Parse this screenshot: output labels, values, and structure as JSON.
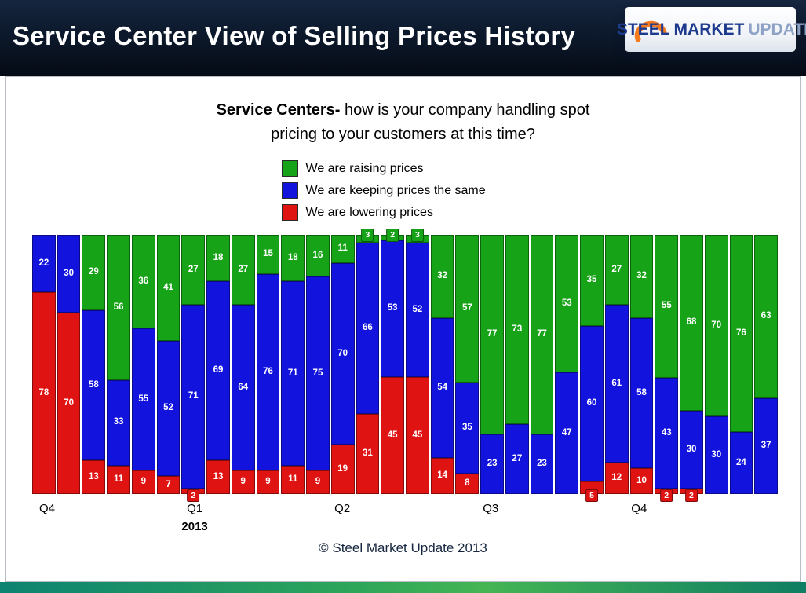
{
  "header": {
    "title": "Service Center View of Selling Prices History"
  },
  "logo": {
    "word1": "STEEL",
    "word2": "MARKET",
    "word3": "UPDATE"
  },
  "chart_title": {
    "bold": "Service Centers-",
    "line1_rest": " how is your company handling spot",
    "line2": "pricing to your customers at this time?"
  },
  "footer": {
    "copyright": "© Steel Market Update 2013"
  },
  "chart_data": {
    "type": "bar",
    "stacked": true,
    "units": "percent",
    "ylim": [
      0,
      100
    ],
    "title": "Service Centers- how is your company handling spot pricing to your customers at this time?",
    "legend_position": "top",
    "series": [
      {
        "name": "We are raising prices",
        "color": "#17A317",
        "callout_max": 3,
        "callout_side": "above",
        "values": [
          0,
          0,
          29,
          56,
          36,
          41,
          27,
          18,
          27,
          15,
          18,
          16,
          11,
          3,
          2,
          3,
          32,
          57,
          77,
          73,
          77,
          53,
          35,
          27,
          32,
          55,
          68,
          70,
          76,
          63
        ]
      },
      {
        "name": "We are keeping prices the same",
        "color": "#1313DE",
        "callout_max": 0,
        "callout_side": "none",
        "values": [
          22,
          30,
          58,
          33,
          55,
          52,
          71,
          69,
          64,
          76,
          71,
          75,
          70,
          66,
          53,
          52,
          54,
          35,
          23,
          27,
          23,
          47,
          60,
          61,
          58,
          43,
          30,
          30,
          24,
          37
        ]
      },
      {
        "name": "We are lowering prices",
        "color": "#E01313",
        "callout_max": 5,
        "callout_side": "below",
        "values": [
          78,
          70,
          13,
          11,
          9,
          7,
          2,
          13,
          9,
          9,
          11,
          9,
          19,
          31,
          45,
          45,
          14,
          8,
          0,
          0,
          0,
          0,
          5,
          12,
          10,
          2,
          2,
          0,
          0,
          0
        ]
      }
    ],
    "x_labels": [
      {
        "text": "Q4",
        "x_pct": 2.0,
        "sub": ""
      },
      {
        "text": "Q1",
        "x_pct": 21.8,
        "sub": "2013"
      },
      {
        "text": "Q2",
        "x_pct": 41.6,
        "sub": ""
      },
      {
        "text": "Q3",
        "x_pct": 61.5,
        "sub": ""
      },
      {
        "text": "Q4",
        "x_pct": 81.4,
        "sub": ""
      }
    ]
  }
}
